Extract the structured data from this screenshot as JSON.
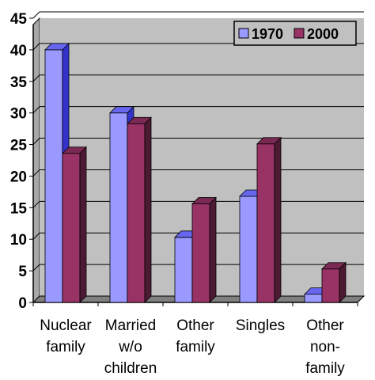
{
  "chart_data": {
    "type": "bar",
    "categories": [
      [
        "Nuclear",
        "family"
      ],
      [
        "Married",
        "w/o",
        "children"
      ],
      [
        "Other",
        "family"
      ],
      [
        "Singles"
      ],
      [
        "Other",
        "non-",
        "family"
      ]
    ],
    "series": [
      {
        "name": "1970",
        "values": [
          40,
          30,
          10.3,
          16.8,
          1.3
        ],
        "color": "#9999ff",
        "side_color": "#3333cc",
        "top_color": "#6666ee"
      },
      {
        "name": "2000",
        "values": [
          23.6,
          28.3,
          15.6,
          25.1,
          5.3
        ],
        "color": "#993366",
        "side_color": "#4d1a33",
        "top_color": "#7a2952"
      }
    ],
    "ylim": [
      0,
      45
    ],
    "yticks": [
      "0",
      "5",
      "10",
      "15",
      "20",
      "25",
      "30",
      "35",
      "40",
      "45"
    ],
    "grid": true,
    "legend_position": "top-right",
    "plot_background": "#c0c0c0"
  }
}
